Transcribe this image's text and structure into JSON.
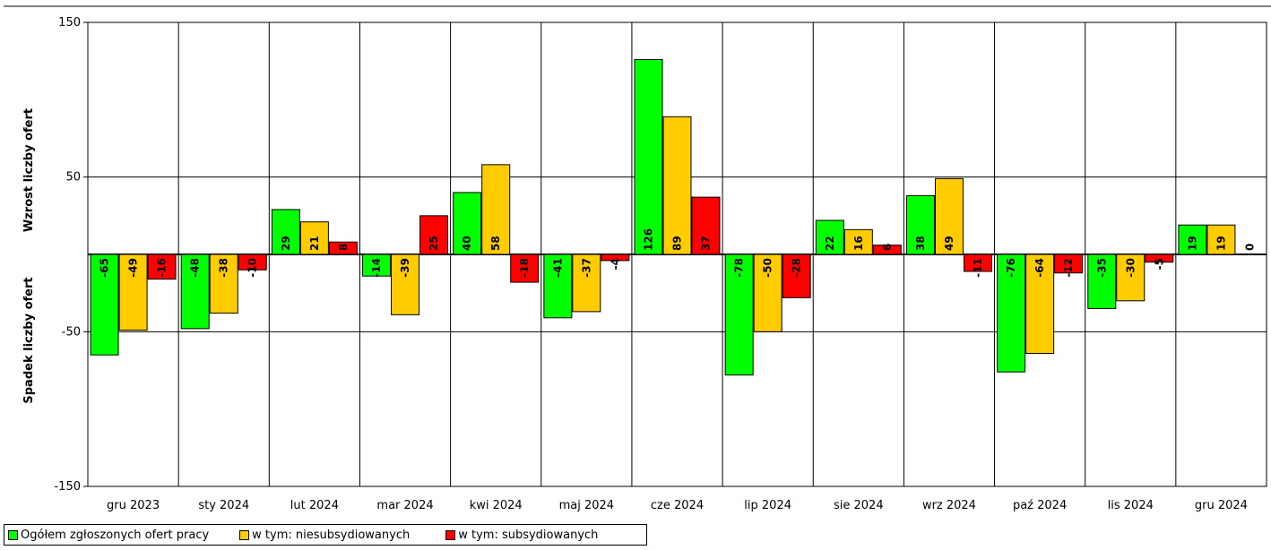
{
  "chart_data": {
    "type": "bar",
    "categories": [
      "gru 2023",
      "sty 2024",
      "lut 2024",
      "mar 2024",
      "kwi 2024",
      "maj 2024",
      "cze 2024",
      "lip 2024",
      "sie 2024",
      "wrz 2024",
      "paź 2024",
      "lis 2024",
      "gru 2024"
    ],
    "series": [
      {
        "name": "Ogółem zgłoszonych ofert pracy",
        "color": "#00ff00",
        "values": [
          -65,
          -48,
          29,
          -14,
          40,
          -41,
          126,
          -78,
          22,
          38,
          -76,
          -35,
          19
        ]
      },
      {
        "name": "w tym: niesubsydiowanych",
        "color": "#ffcc00",
        "values": [
          -49,
          -38,
          21,
          -39,
          58,
          -37,
          89,
          -50,
          16,
          49,
          -64,
          -30,
          19
        ]
      },
      {
        "name": "w tym: subsydiowanych",
        "color": "#ff0000",
        "values": [
          -16,
          -10,
          8,
          25,
          -18,
          -4,
          37,
          -28,
          6,
          -11,
          -12,
          -5,
          0
        ]
      }
    ],
    "ylim": [
      -150,
      150
    ],
    "yticks": [
      -150,
      -50,
      50,
      150
    ],
    "ylabel_top": "Wzrost liczby ofert",
    "ylabel_bottom": "Spadek liczby ofert",
    "grid": true,
    "legend_position": "bottom-left"
  }
}
